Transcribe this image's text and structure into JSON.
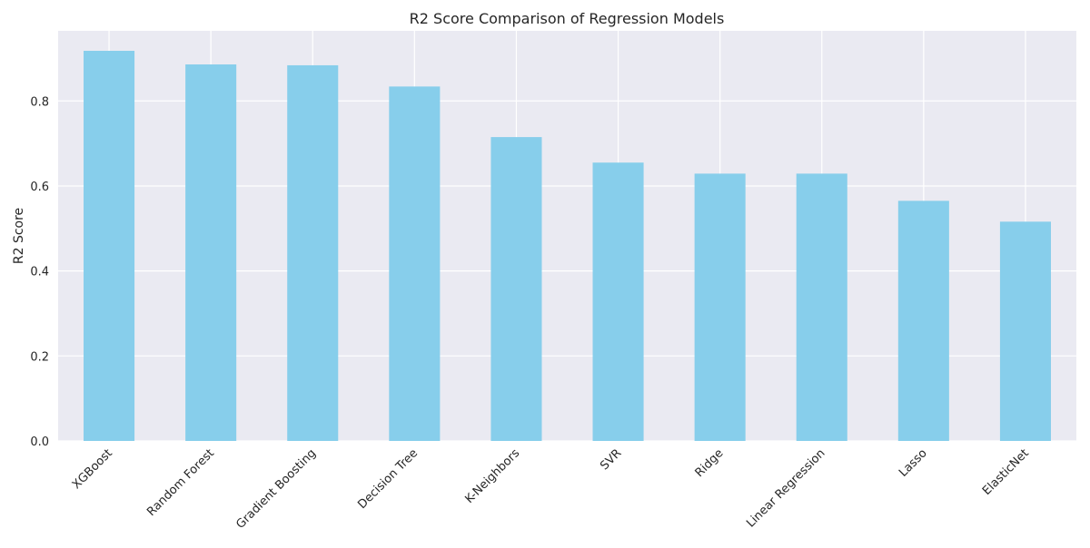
{
  "colors": {
    "bar": "#87ceeb",
    "background": "#eaeaf2",
    "grid": "#ffffff",
    "text": "#262626"
  },
  "chart_data": {
    "type": "bar",
    "title": "R2 Score Comparison of Regression Models",
    "xlabel": "",
    "ylabel": "R2 Score",
    "categories": [
      "XGBoost",
      "Random Forest",
      "Gradient Boosting",
      "Decision Tree",
      "K-Neighbors",
      "SVR",
      "Ridge",
      "Linear Regression",
      "Lasso",
      "ElasticNet"
    ],
    "values": [
      0.918,
      0.886,
      0.884,
      0.834,
      0.715,
      0.655,
      0.629,
      0.629,
      0.565,
      0.516
    ],
    "ylim": [
      0,
      0.965
    ],
    "yticks": [
      "0.0",
      "0.2",
      "0.4",
      "0.6",
      "0.8"
    ],
    "ytick_values": [
      0.0,
      0.2,
      0.4,
      0.6,
      0.8
    ],
    "grid": true,
    "legend": "none"
  }
}
